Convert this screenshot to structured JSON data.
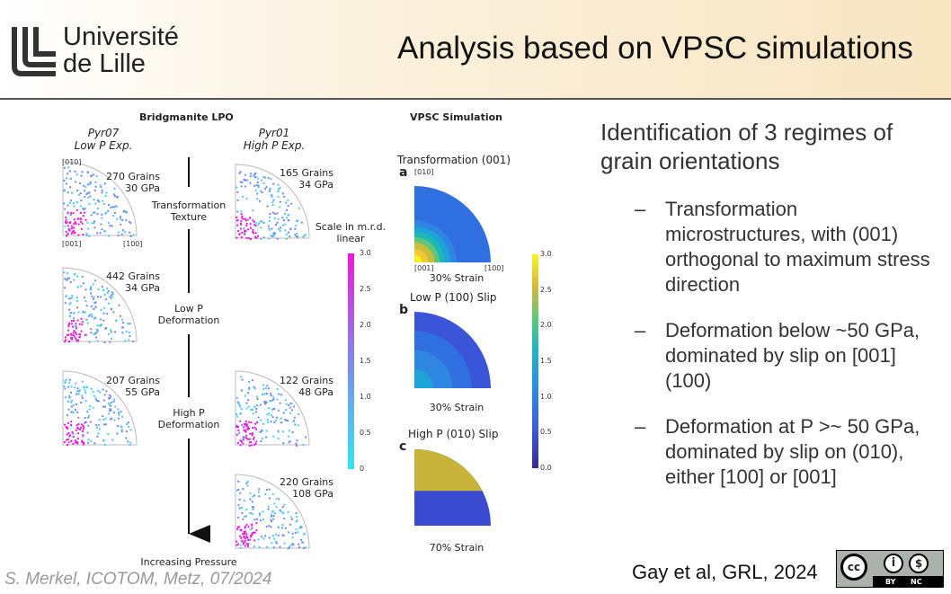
{
  "header": {
    "logo_line1": "Université",
    "logo_line2": "de Lille",
    "title": "Analysis based on VPSC simulations"
  },
  "figure": {
    "left_title": "Bridgmanite LPO",
    "col1_label": [
      "Pyr07",
      "Low P Exp."
    ],
    "col2_label": [
      "Pyr01",
      "High P Exp."
    ],
    "axis_labels": {
      "top": "[010]",
      "origin": "[001]",
      "right": "[100]"
    },
    "pf": [
      {
        "grains": "270 Grains",
        "pressure": "30 GPa"
      },
      {
        "grains": "165 Grains",
        "pressure": "34 GPa"
      },
      {
        "grains": "442 Grains",
        "pressure": "34 GPa"
      },
      {
        "grains": "207 Grains",
        "pressure": "55 GPa"
      },
      {
        "grains": "122 Grains",
        "pressure": "48 GPa"
      },
      {
        "grains": "220 Grains",
        "pressure": "108 GPa"
      }
    ],
    "stages": [
      [
        "Transformation",
        "Texture"
      ],
      [
        "Low P",
        "Deformation"
      ],
      [
        "High P",
        "Deformation"
      ]
    ],
    "arrow_label": "Increasing Pressure",
    "scale_label": [
      "Scale in m.r.d.",
      "linear"
    ],
    "scale_ticks": [
      "3.0",
      "2.5",
      "2.0",
      "1.5",
      "1.0",
      "0.5",
      "0"
    ],
    "right_title": "VPSC Simulation",
    "sims": [
      {
        "letter": "a",
        "title": "Transformation (001)",
        "strain": "30% Strain"
      },
      {
        "letter": "b",
        "title": "Low P (100) Slip",
        "strain": "30% Strain"
      },
      {
        "letter": "c",
        "title": "High P (010) Slip",
        "strain": "70% Strain"
      }
    ],
    "sim_ticks": [
      "3.0",
      "2.5",
      "2.0",
      "1.5",
      "1.0",
      "0.5",
      "0.0"
    ]
  },
  "content": {
    "intro": "Identification of 3 regimes of grain orientations",
    "bullets": [
      "Transformation microstructures, with (001) orthogonal to maximum stress direction",
      "Deformation below ~50 GPa, dominated by slip on [001](100)",
      "Deformation at P >~ 50 GPa, dominated by slip on (010), either [100] or [001]"
    ],
    "dash": "–"
  },
  "footer": {
    "credit": "S. Merkel, ICOTOM, Metz, 07/2024",
    "reference": "Gay et al, GRL, 2024",
    "license": [
      "cc",
      "BY",
      "NC"
    ]
  }
}
